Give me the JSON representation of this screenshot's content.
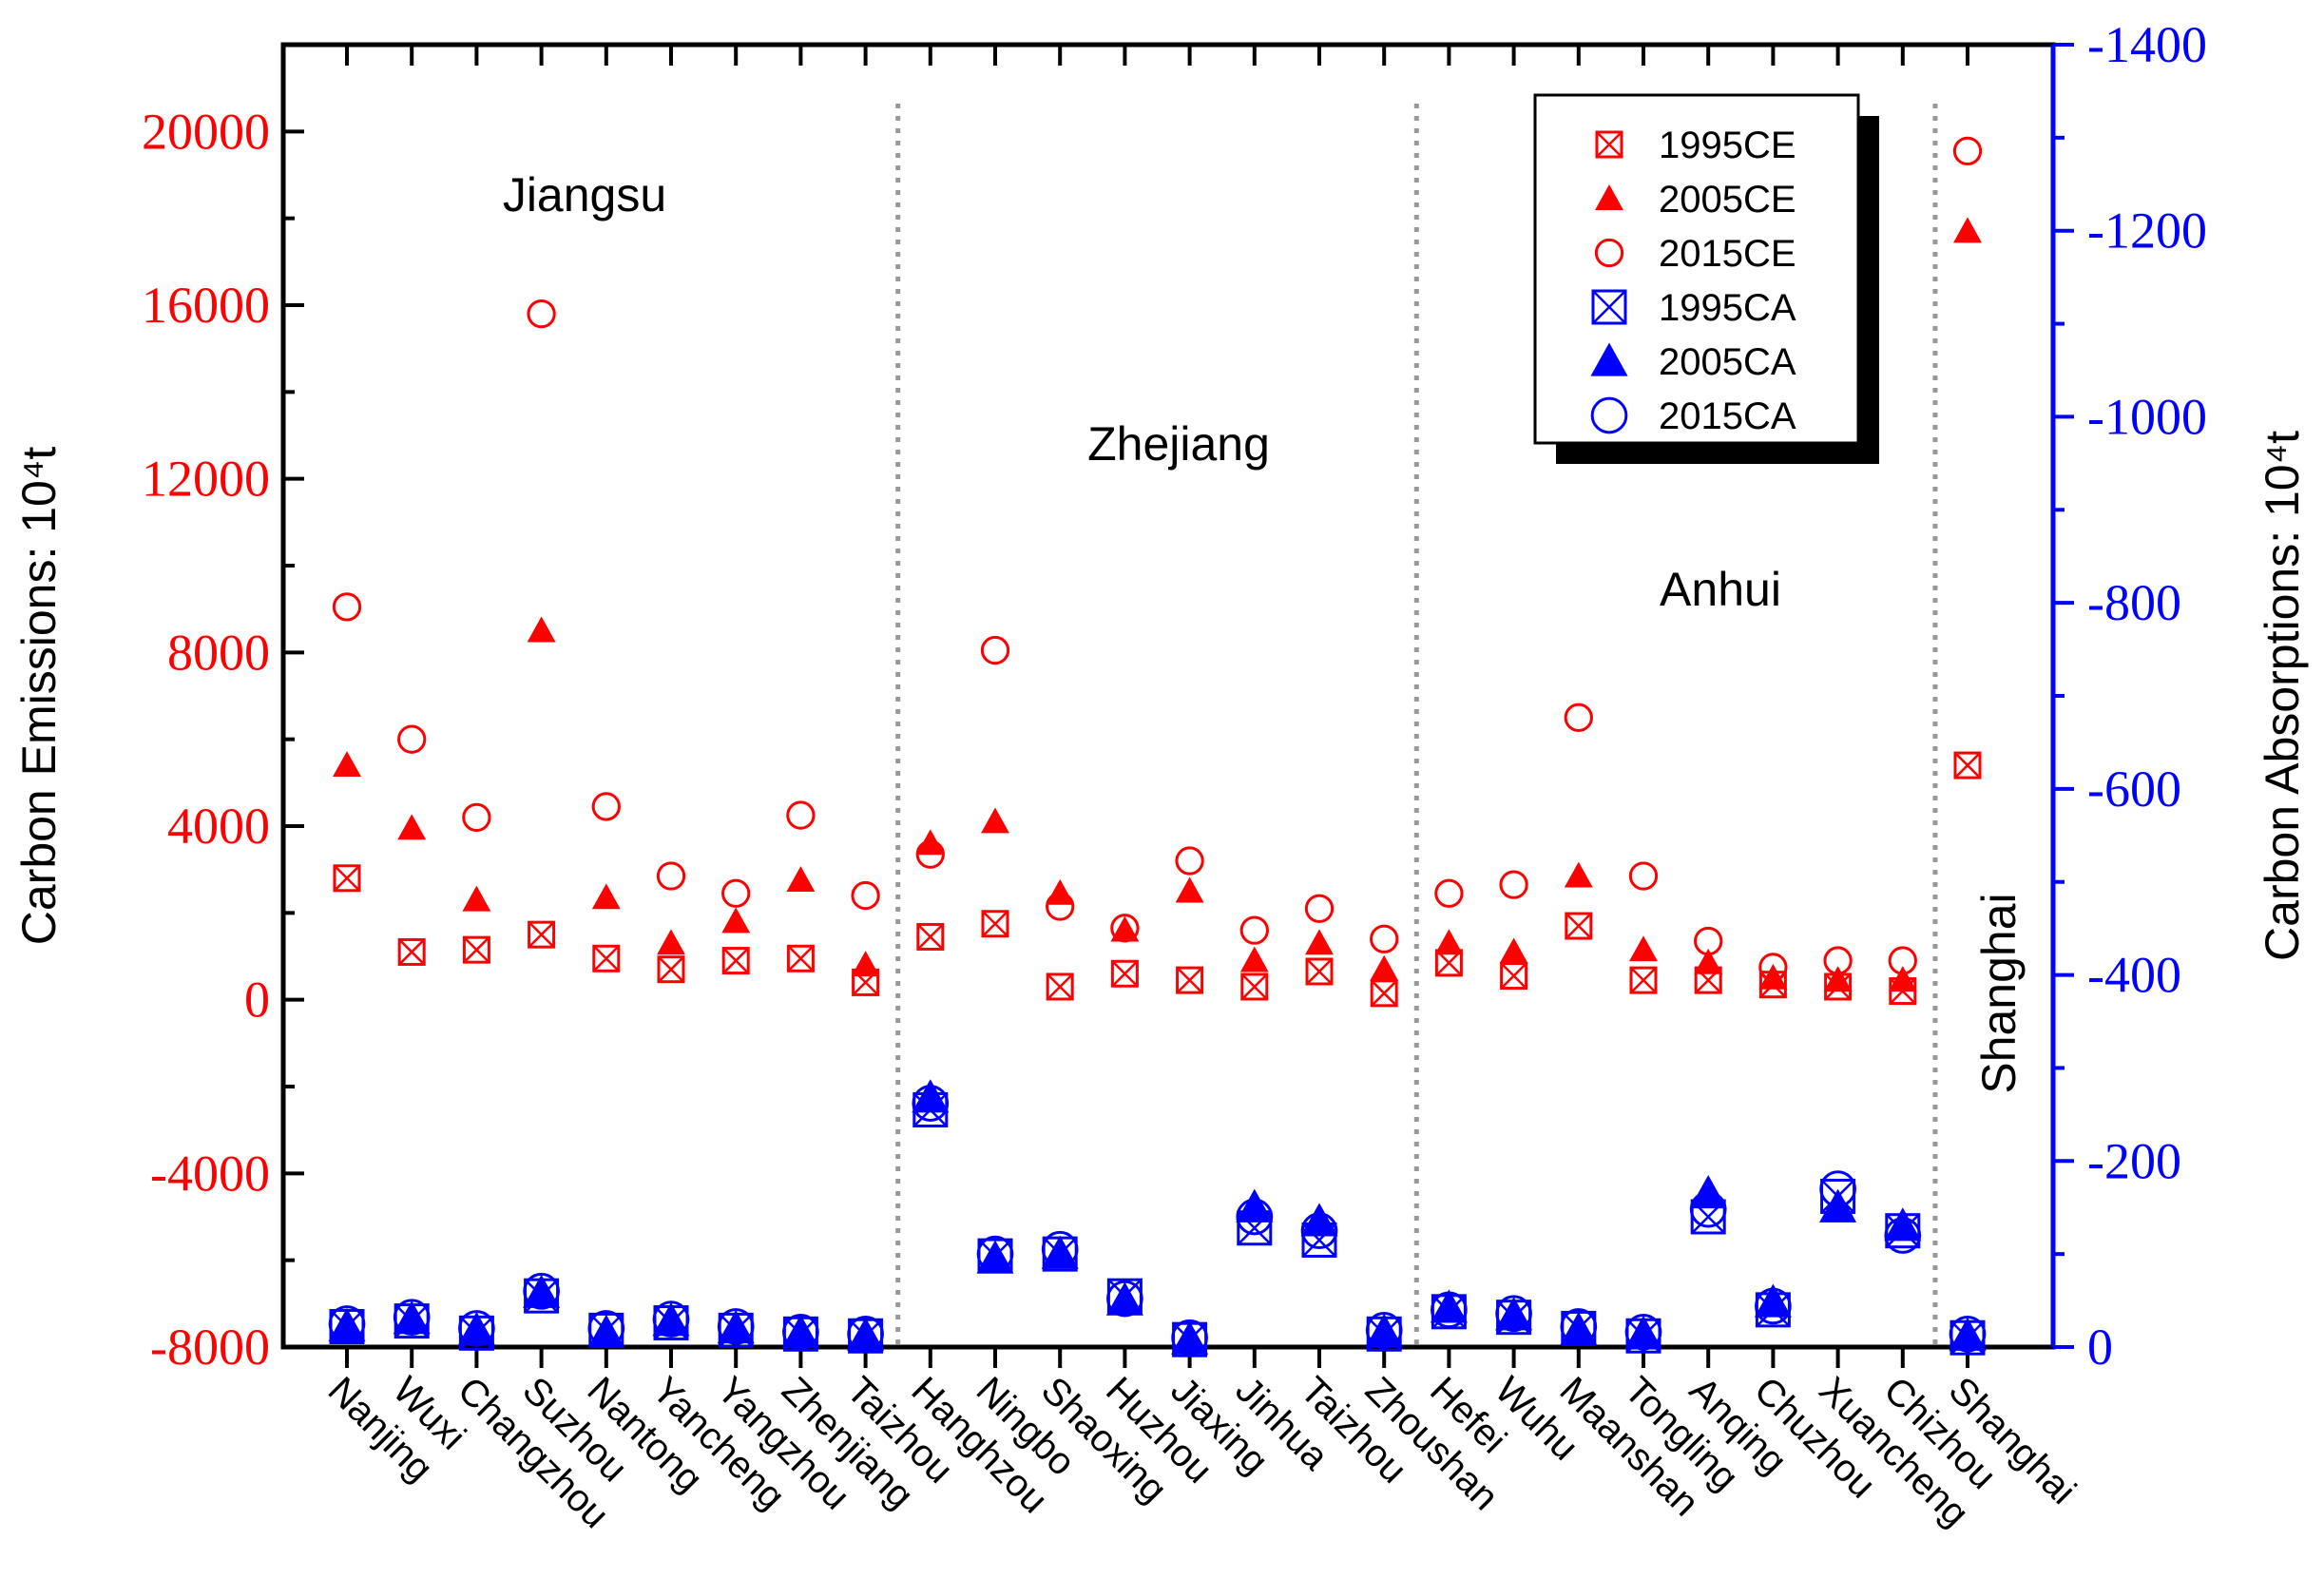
{
  "chart_data": {
    "type": "scatter",
    "categories": [
      "Nanjing",
      "Wuxi",
      "Changzhou",
      "Suzhou",
      "Nantong",
      "Yancheng",
      "Yangzhou",
      "Zhenjiang",
      "Taizhou",
      "Hanghzou",
      "Ningbo",
      "Shaoxing",
      "Huzhou",
      "Jiaxing",
      "Jinhua",
      "Taizhou",
      "Zhoushan",
      "Hefei",
      "Wuhu",
      "Maanshan",
      "Tongling",
      "Anqing",
      "Chuzhou",
      "Xuancheng",
      "Chizhou",
      "Shanghai"
    ],
    "left_axis": {
      "label": "Carbon Emissions: 10⁴t",
      "ylim": [
        -8000,
        22000
      ],
      "ticks": [
        20000,
        16000,
        12000,
        8000,
        4000,
        0,
        -4000,
        -8000
      ],
      "tick_labels": [
        "20000",
        "16000",
        "12000",
        "8000",
        "4000",
        "0",
        "-4000",
        "-8000"
      ],
      "color": "#ff0000"
    },
    "right_axis": {
      "label": "Carbon Absorptions: 10⁴t",
      "ylim": [
        0,
        -1400
      ],
      "ticks": [
        -1400,
        -1200,
        -1000,
        -800,
        -600,
        -400,
        -200,
        0
      ],
      "tick_labels": [
        "-1400",
        "-1200",
        "-1000",
        "-800",
        "-600",
        "-400",
        "-200",
        "0"
      ],
      "color": "#0000ff"
    },
    "regions": [
      {
        "name": "Jiangsu",
        "from": 0,
        "to": 8
      },
      {
        "name": "Zhejiang",
        "from": 9,
        "to": 16
      },
      {
        "name": "Anhui",
        "from": 17,
        "to": 24
      },
      {
        "name": "Shanghai",
        "from": 25,
        "to": 25
      }
    ],
    "series": [
      {
        "name": "1995CE",
        "axis": "left",
        "marker": "square-x",
        "color": "#ff0000",
        "values": [
          2800,
          1100,
          1150,
          1500,
          950,
          700,
          900,
          950,
          400,
          1450,
          1750,
          300,
          600,
          450,
          300,
          650,
          150,
          850,
          550,
          1700,
          450,
          450,
          350,
          300,
          200,
          5400
        ]
      },
      {
        "name": "2005CE",
        "axis": "left",
        "marker": "triangle",
        "color": "#ff0000",
        "values": [
          5400,
          3950,
          2300,
          8500,
          2350,
          1300,
          1800,
          2750,
          800,
          3600,
          4100,
          2450,
          1600,
          2500,
          900,
          1300,
          700,
          1300,
          1100,
          2850,
          1150,
          850,
          500,
          450,
          450,
          17700
        ]
      },
      {
        "name": "2015CE",
        "axis": "left",
        "marker": "circle",
        "color": "#ff0000",
        "values": [
          9050,
          6000,
          4200,
          15800,
          4450,
          2850,
          2450,
          4250,
          2400,
          3350,
          8050,
          2150,
          1650,
          3200,
          1600,
          2100,
          1400,
          2450,
          2650,
          6500,
          2850,
          1350,
          750,
          900,
          900,
          19550
        ]
      },
      {
        "name": "1995CA",
        "axis": "right",
        "marker": "square-x",
        "color": "#0000ff",
        "values": [
          -22,
          -28,
          -15,
          -55,
          -18,
          -26,
          -18,
          -14,
          -12,
          -255,
          -98,
          -100,
          -55,
          -8,
          -128,
          -115,
          -14,
          -38,
          -32,
          -20,
          -12,
          -140,
          -40,
          -162,
          -125,
          -10
        ]
      },
      {
        "name": "2005CA",
        "axis": "right",
        "marker": "triangle",
        "color": "#0000ff",
        "values": [
          -22,
          -30,
          -18,
          -58,
          -15,
          -28,
          -20,
          -15,
          -12,
          -268,
          -95,
          -100,
          -50,
          -8,
          -150,
          -135,
          -16,
          -42,
          -34,
          -18,
          -14,
          -165,
          -48,
          -150,
          -130,
          -12
        ]
      },
      {
        "name": "2015CA",
        "axis": "right",
        "marker": "circle",
        "color": "#0000ff",
        "values": [
          -25,
          -32,
          -20,
          -60,
          -20,
          -30,
          -22,
          -16,
          -14,
          -262,
          -100,
          -105,
          -52,
          -10,
          -140,
          -125,
          -18,
          -40,
          -36,
          -22,
          -16,
          -148,
          -44,
          -170,
          -120,
          -14
        ]
      }
    ],
    "legend": {
      "position": "top-right"
    },
    "grid": false
  }
}
